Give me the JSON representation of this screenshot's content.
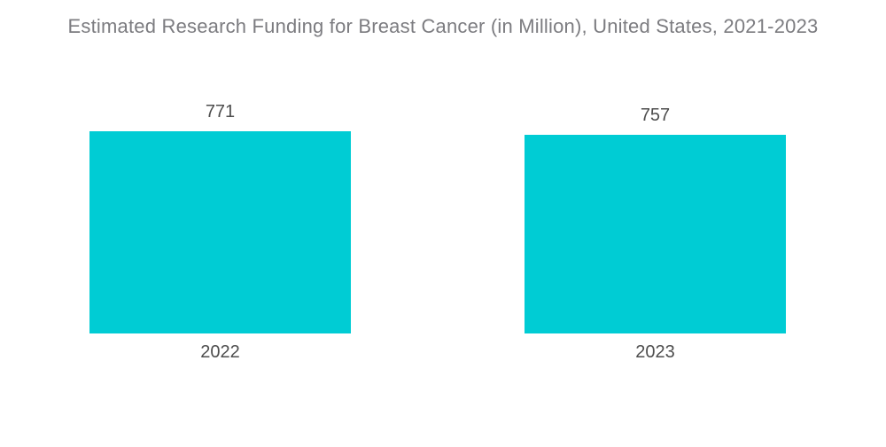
{
  "title": "Estimated Research Funding for Breast Cancer (in Million), United States, 2021-2023",
  "colors": {
    "background": "#ffffff",
    "bar": "#00ccd4",
    "title_text": "#7c7c80",
    "label_text": "#4d4d4d"
  },
  "chart_data": {
    "type": "bar",
    "title": "Estimated Research Funding for Breast Cancer (in Million), United States, 2021-2023",
    "categories": [
      "2022",
      "2023"
    ],
    "values": [
      771,
      757
    ],
    "xlabel": "",
    "ylabel": "",
    "ylim": [
      0,
      771
    ],
    "grid": false,
    "legend": "none",
    "value_labels_position": "above-bars",
    "bar_color": "#00ccd4"
  }
}
